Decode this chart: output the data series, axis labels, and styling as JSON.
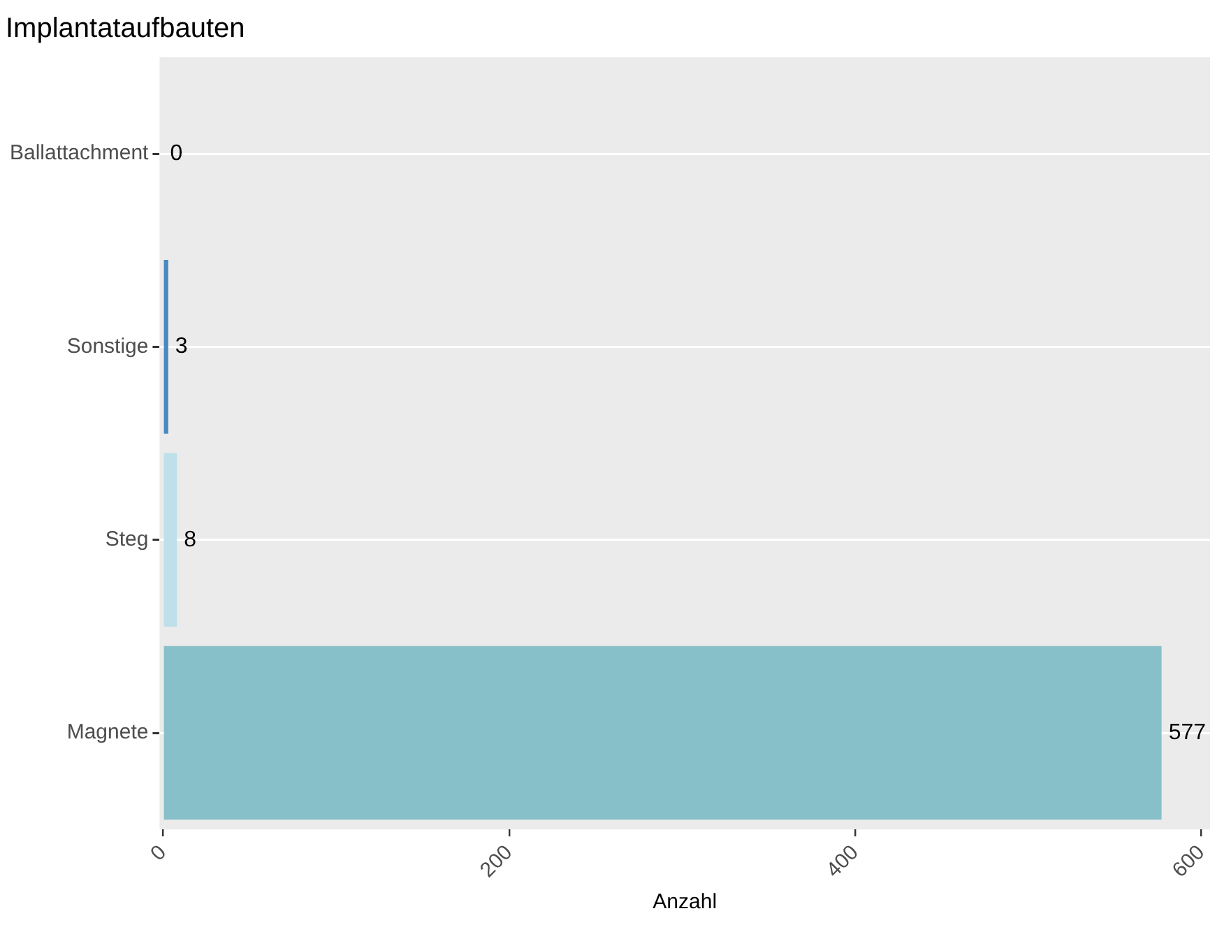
{
  "chart_data": {
    "type": "bar",
    "orientation": "horizontal",
    "title": "Implantataufbauten",
    "xlabel": "Anzahl",
    "categories": [
      "Ballattachment",
      "Sonstige",
      "Steg",
      "Magnete"
    ],
    "values": [
      0,
      3,
      8,
      577
    ],
    "colors": [
      "#2f6fb0",
      "#4a88c2",
      "#bde0ea",
      "#88c0c9"
    ],
    "xlim": [
      -2,
      605
    ],
    "xticks": [
      0,
      200,
      400,
      600
    ],
    "grid": "y",
    "data_labels": true,
    "legend": false
  }
}
